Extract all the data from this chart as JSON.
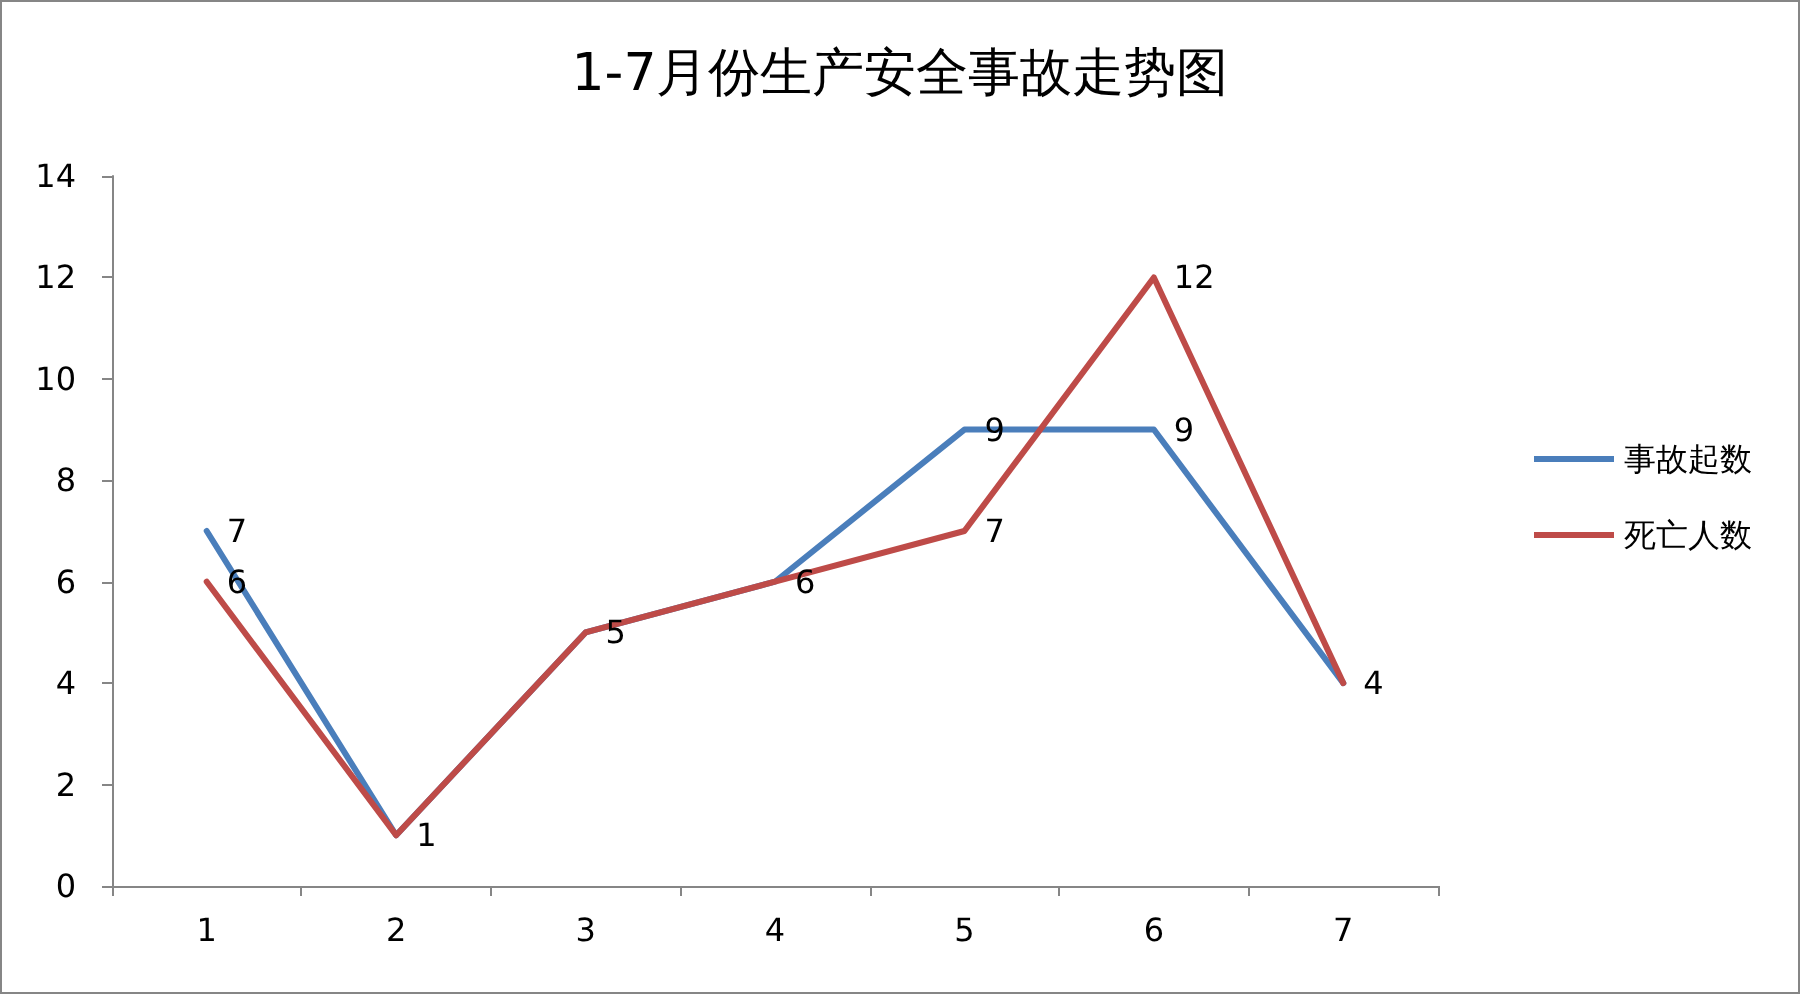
{
  "chart_data": {
    "type": "line",
    "title": "1-7月份生产安全事故走势图",
    "categories": [
      "1",
      "2",
      "3",
      "4",
      "5",
      "6",
      "7"
    ],
    "series": [
      {
        "name": "事故起数",
        "color": "#4a7ebb",
        "values": [
          7,
          1,
          5,
          6,
          9,
          9,
          4
        ],
        "value_labels": [
          "7",
          "1",
          "5",
          "6",
          "9",
          "9",
          "4"
        ]
      },
      {
        "name": "死亡人数",
        "color": "#be4b48",
        "values": [
          6,
          1,
          5,
          6,
          7,
          12,
          4
        ],
        "value_labels": [
          "6",
          null,
          null,
          null,
          "7",
          "12",
          null
        ]
      }
    ],
    "ylim": [
      0,
      14
    ],
    "yticks": [
      0,
      2,
      4,
      6,
      8,
      10,
      12,
      14
    ],
    "grid": false,
    "legend": "right",
    "marker": "none",
    "line_style": "solid"
  }
}
